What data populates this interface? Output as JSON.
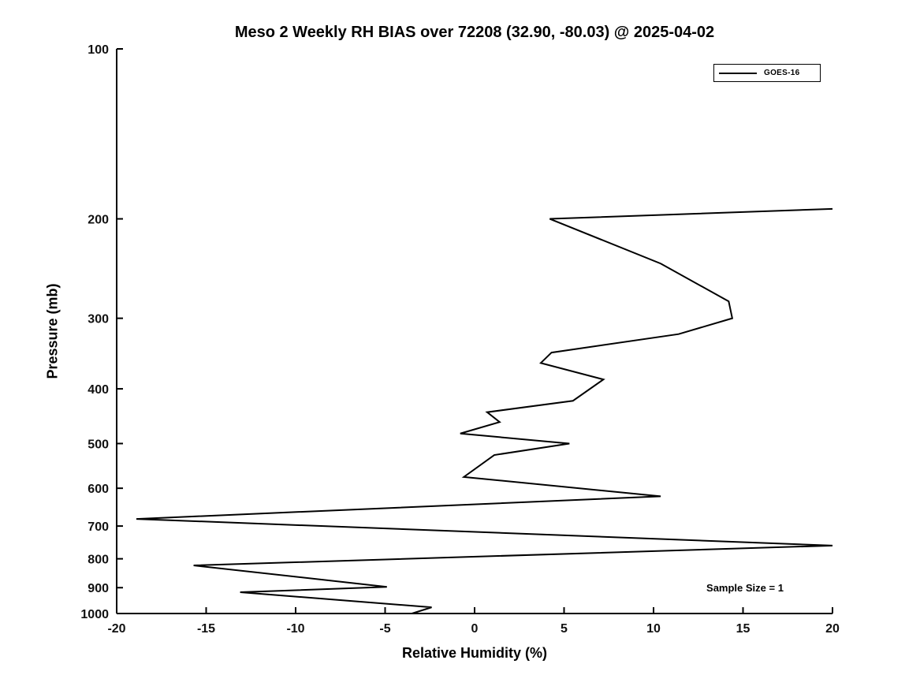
{
  "chart_data": {
    "type": "line",
    "title": "Meso 2 Weekly RH BIAS over 72208 (32.90, -80.03) @ 2025-04-02",
    "xlabel": "Relative Humidity (%)",
    "ylabel": "Pressure (mb)",
    "xlim": [
      -20,
      20
    ],
    "ylim": [
      100,
      1000
    ],
    "y_scale": "log",
    "y_inverted": true,
    "grid": false,
    "x_ticks": [
      -20,
      -15,
      -10,
      -5,
      0,
      5,
      10,
      15,
      20
    ],
    "y_ticks": [
      100,
      200,
      300,
      400,
      500,
      600,
      700,
      800,
      900,
      1000
    ],
    "legend": {
      "position": "top-right",
      "entries": [
        {
          "label": "GOES-16",
          "color": "#000000"
        }
      ]
    },
    "annotation": "Sample Size = 1",
    "series": [
      {
        "name": "GOES-16",
        "color": "#000000",
        "line_width": 2,
        "points_format": "[pressure_mb, rh_bias_percent]",
        "points": [
          [
            192,
            20.0
          ],
          [
            200,
            4.2
          ],
          [
            240,
            10.4
          ],
          [
            280,
            14.2
          ],
          [
            300,
            14.4
          ],
          [
            320,
            11.4
          ],
          [
            345,
            4.3
          ],
          [
            360,
            3.7
          ],
          [
            385,
            7.2
          ],
          [
            420,
            5.5
          ],
          [
            440,
            0.7
          ],
          [
            458,
            1.4
          ],
          [
            480,
            -0.8
          ],
          [
            500,
            5.3
          ],
          [
            524,
            1.1
          ],
          [
            573,
            -0.6
          ],
          [
            620,
            10.4
          ],
          [
            680,
            -18.9
          ],
          [
            758,
            20.0
          ],
          [
            822,
            -15.7
          ],
          [
            897,
            -4.9
          ],
          [
            917,
            -13.1
          ],
          [
            975,
            -2.4
          ],
          [
            1000,
            -3.5
          ]
        ]
      }
    ]
  }
}
